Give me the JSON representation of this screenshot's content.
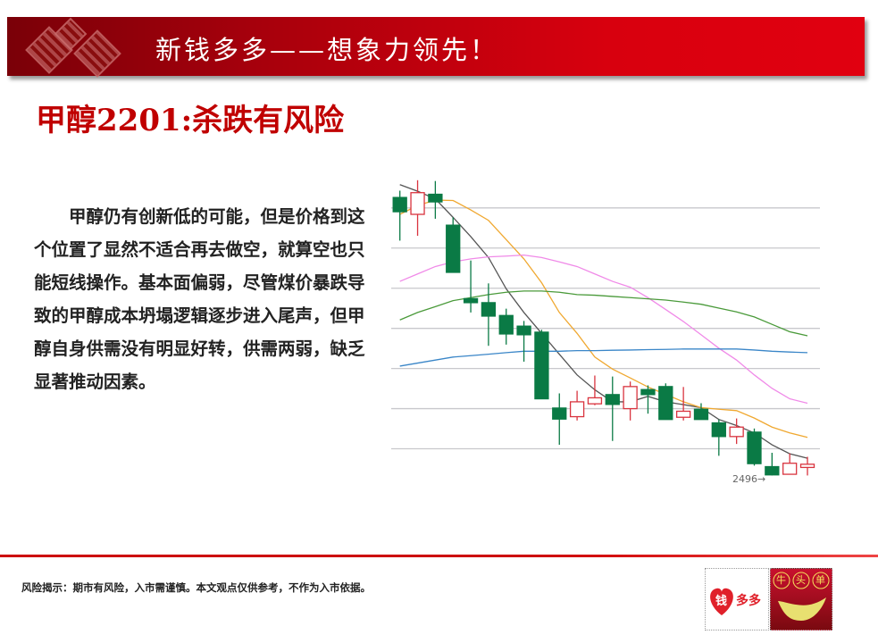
{
  "banner": {
    "title": "新钱多多——想象力领先！"
  },
  "headline": "甲醇2201:杀跌有风险",
  "body": "甲醇仍有创新低的可能，但是价格到这个位置了显然不适合再去做空，就算空也只能短线操作。基本面偏弱，尽管煤价暴跌导致的甲醇成本坍塌逻辑逐步进入尾声，但甲醇自身供需没有明显好转，供需两弱，缺乏显著推动因素。",
  "footer": {
    "risk": "风险揭示：期市有风险，入市需谨慎。本文观点仅供参考，不作为入市依据。",
    "logo1": "钱多多",
    "logo2": "牛头单"
  },
  "colors": {
    "banner": "#d8000e",
    "headline": "#c00000",
    "up": "#d9343f",
    "down": "#0a7a45"
  },
  "chart_data": {
    "type": "candlestick",
    "ylim": [
      2440,
      3975
    ],
    "grid": true,
    "gridlines": [
      2629,
      2829,
      3029,
      3229,
      3429,
      3629,
      3829
    ],
    "annotation": "2496→",
    "candles": [
      {
        "o": 3881,
        "h": 3915,
        "l": 3666,
        "c": 3810
      },
      {
        "o": 3797,
        "h": 3967,
        "l": 3690,
        "c": 3905
      },
      {
        "o": 3897,
        "h": 3963,
        "l": 3775,
        "c": 3859
      },
      {
        "o": 3743,
        "h": 3782,
        "l": 3508,
        "c": 3508
      },
      {
        "o": 3377,
        "h": 3567,
        "l": 3308,
        "c": 3357
      },
      {
        "o": 3357,
        "h": 3453,
        "l": 3142,
        "c": 3290
      },
      {
        "o": 3293,
        "h": 3327,
        "l": 3148,
        "c": 3201
      },
      {
        "o": 3240,
        "h": 3266,
        "l": 3063,
        "c": 3197
      },
      {
        "o": 3210,
        "h": 3222,
        "l": 2878,
        "c": 2878
      },
      {
        "o": 2832,
        "h": 2905,
        "l": 2649,
        "c": 2777
      },
      {
        "o": 2789,
        "h": 2918,
        "l": 2770,
        "c": 2863
      },
      {
        "o": 2853,
        "h": 2994,
        "l": 2846,
        "c": 2883
      },
      {
        "o": 2899,
        "h": 2989,
        "l": 2668,
        "c": 2850
      },
      {
        "o": 2829,
        "h": 2964,
        "l": 2770,
        "c": 2939
      },
      {
        "o": 2924,
        "h": 2945,
        "l": 2804,
        "c": 2899
      },
      {
        "o": 2939,
        "h": 2955,
        "l": 2775,
        "c": 2775
      },
      {
        "o": 2786,
        "h": 2937,
        "l": 2770,
        "c": 2816
      },
      {
        "o": 2826,
        "h": 2856,
        "l": 2775,
        "c": 2775
      },
      {
        "o": 2758,
        "h": 2775,
        "l": 2594,
        "c": 2690
      },
      {
        "o": 2690,
        "h": 2780,
        "l": 2653,
        "c": 2737
      },
      {
        "o": 2712,
        "h": 2730,
        "l": 2545,
        "c": 2555
      },
      {
        "o": 2540,
        "h": 2609,
        "l": 2496,
        "c": 2499
      },
      {
        "o": 2502,
        "h": 2606,
        "l": 2502,
        "c": 2557
      },
      {
        "o": 2536,
        "h": 2589,
        "l": 2496,
        "c": 2552
      }
    ],
    "series": [
      {
        "color": "#555555",
        "values": [
          3945,
          3912,
          3874,
          3782,
          3686,
          3582,
          3426,
          3308,
          3204,
          3100,
          2997,
          2923,
          2863,
          2863,
          2890,
          2863,
          2849,
          2834,
          2775,
          2745,
          2708,
          2649,
          2604,
          2582
        ]
      },
      {
        "color": "#f0a830",
        "values": [
          3797,
          3841,
          3868,
          3866,
          3819,
          3767,
          3671,
          3575,
          3456,
          3308,
          3204,
          3086,
          3026,
          2982,
          2937,
          2900,
          2863,
          2834,
          2826,
          2819,
          2782,
          2737,
          2708,
          2686
        ]
      },
      {
        "color": "#f08ae8",
        "values": [
          3463,
          3500,
          3537,
          3560,
          3575,
          3585,
          3589,
          3594,
          3582,
          3560,
          3537,
          3500,
          3463,
          3434,
          3382,
          3323,
          3263,
          3197,
          3130,
          3071,
          2997,
          2930,
          2878,
          2856
        ]
      },
      {
        "color": "#4a9a3a",
        "values": [
          3271,
          3308,
          3337,
          3367,
          3382,
          3397,
          3409,
          3415,
          3415,
          3409,
          3397,
          3394,
          3388,
          3382,
          3376,
          3370,
          3360,
          3349,
          3330,
          3311,
          3286,
          3249,
          3212,
          3192
        ]
      },
      {
        "color": "#3a86c8",
        "values": [
          3041,
          3056,
          3071,
          3086,
          3093,
          3100,
          3108,
          3115,
          3115,
          3115,
          3118,
          3118,
          3120,
          3121,
          3123,
          3124,
          3126,
          3126,
          3126,
          3126,
          3121,
          3115,
          3111,
          3108
        ]
      }
    ]
  }
}
